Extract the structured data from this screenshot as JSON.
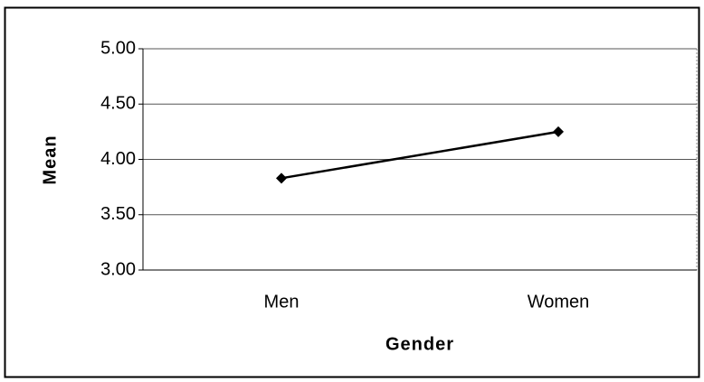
{
  "chart_data": {
    "type": "line",
    "categories": [
      "Men",
      "Women"
    ],
    "series": [
      {
        "name": "Mean",
        "color": "#000000",
        "values": [
          3.83,
          4.25
        ]
      }
    ],
    "xlabel": "Gender",
    "ylabel": "Mean",
    "ylim": [
      3,
      5
    ],
    "yticks": [
      {
        "value": 3,
        "label": "3.00"
      },
      {
        "value": 3.5,
        "label": "3.50"
      },
      {
        "value": 4,
        "label": "4.00"
      },
      {
        "value": 4.5,
        "label": "4.50"
      },
      {
        "value": 5,
        "label": "5.00"
      }
    ],
    "grid": true
  }
}
